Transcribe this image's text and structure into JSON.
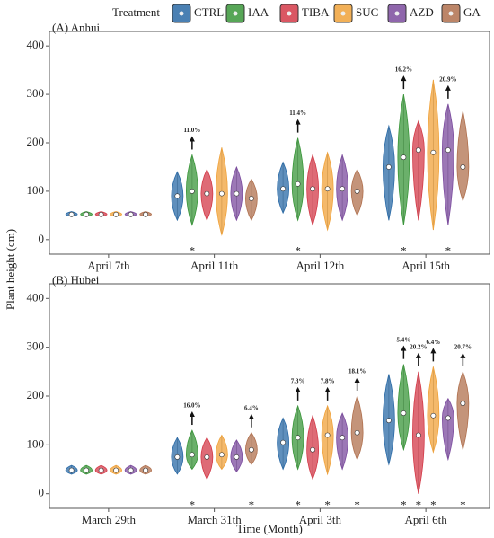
{
  "chart_data": {
    "type": "violin",
    "legend_title": "Treatment",
    "ylabel": "Plant height (cm)",
    "xlabel": "Time (Month)",
    "ylim": [
      -30,
      430
    ],
    "yticks": [
      0,
      100,
      200,
      300,
      400
    ],
    "series": [
      {
        "name": "CTRL",
        "color": "#2a6aa6"
      },
      {
        "name": "IAA",
        "color": "#3a963a"
      },
      {
        "name": "TIBA",
        "color": "#d33a48"
      },
      {
        "name": "SUC",
        "color": "#f0a23a"
      },
      {
        "name": "AZD",
        "color": "#7b4b9e"
      },
      {
        "name": "GA",
        "color": "#b0704e"
      }
    ],
    "panels": [
      {
        "title": "(A) Anhui",
        "categories": [
          "April 7th",
          "April 11th",
          "April 12th",
          "April 15th"
        ],
        "groups": [
          {
            "values": [
              52,
              90,
              105,
              150
            ],
            "low": [
              48,
              40,
              55,
              40
            ],
            "high": [
              58,
              140,
              160,
              235
            ],
            "annotations": [
              null,
              null,
              null,
              null
            ],
            "significance": [
              null,
              null,
              null,
              null
            ]
          },
          {
            "values": [
              52,
              100,
              115,
              170
            ],
            "low": [
              48,
              30,
              40,
              30
            ],
            "high": [
              58,
              175,
              210,
              300
            ],
            "annotations": [
              null,
              "11.0%",
              "11.4%",
              "16.2%"
            ],
            "significance": [
              null,
              "*",
              "*",
              "*"
            ]
          },
          {
            "values": [
              52,
              95,
              105,
              185
            ],
            "low": [
              48,
              40,
              30,
              40
            ],
            "high": [
              58,
              145,
              175,
              245
            ],
            "annotations": [
              null,
              null,
              null,
              null
            ],
            "significance": [
              null,
              null,
              null,
              null
            ]
          },
          {
            "values": [
              52,
              95,
              105,
              180
            ],
            "low": [
              48,
              10,
              20,
              20
            ],
            "high": [
              58,
              190,
              180,
              330
            ],
            "annotations": [
              null,
              null,
              null,
              null
            ],
            "significance": [
              null,
              null,
              null,
              null
            ]
          },
          {
            "values": [
              52,
              95,
              105,
              185
            ],
            "low": [
              48,
              40,
              40,
              30
            ],
            "high": [
              58,
              150,
              175,
              280
            ],
            "annotations": [
              null,
              null,
              null,
              "20.9%"
            ],
            "significance": [
              null,
              null,
              null,
              "*"
            ]
          },
          {
            "values": [
              52,
              85,
              100,
              150
            ],
            "low": [
              48,
              40,
              50,
              80
            ],
            "high": [
              58,
              125,
              145,
              265
            ],
            "annotations": [
              null,
              null,
              null,
              null
            ],
            "significance": [
              null,
              null,
              null,
              null
            ]
          }
        ]
      },
      {
        "title": "(B) Hubei",
        "categories": [
          "March 29th",
          "March 31th",
          "April 3th",
          "April 6th"
        ],
        "groups": [
          {
            "values": [
              48,
              75,
              105,
              150
            ],
            "low": [
              40,
              40,
              50,
              60
            ],
            "high": [
              58,
              115,
              155,
              245
            ],
            "annotations": [
              null,
              null,
              null,
              null
            ],
            "significance": [
              null,
              null,
              null,
              null
            ]
          },
          {
            "values": [
              48,
              80,
              115,
              165
            ],
            "low": [
              40,
              50,
              50,
              90
            ],
            "high": [
              58,
              130,
              180,
              265
            ],
            "annotations": [
              null,
              "16.0%",
              "7.3%",
              "5.4%"
            ],
            "significance": [
              null,
              "*",
              "*",
              "*"
            ]
          },
          {
            "values": [
              48,
              75,
              90,
              120
            ],
            "low": [
              40,
              30,
              30,
              0
            ],
            "high": [
              58,
              115,
              160,
              250
            ],
            "annotations": [
              null,
              null,
              null,
              "20.2%"
            ],
            "significance": [
              null,
              null,
              null,
              "*"
            ]
          },
          {
            "values": [
              48,
              80,
              120,
              160
            ],
            "low": [
              40,
              50,
              40,
              85
            ],
            "high": [
              58,
              120,
              180,
              260
            ],
            "annotations": [
              null,
              null,
              "7.8%",
              "6.4%"
            ],
            "significance": [
              null,
              null,
              "*",
              "*"
            ]
          },
          {
            "values": [
              48,
              75,
              115,
              155
            ],
            "low": [
              40,
              45,
              50,
              70
            ],
            "high": [
              58,
              110,
              165,
              195
            ],
            "annotations": [
              null,
              null,
              null,
              null
            ],
            "significance": [
              null,
              null,
              null,
              null
            ]
          },
          {
            "values": [
              48,
              90,
              125,
              185
            ],
            "low": [
              40,
              60,
              70,
              90
            ],
            "high": [
              58,
              125,
              200,
              250
            ],
            "annotations": [
              null,
              "6.4%",
              "18.1%",
              "20.7%"
            ],
            "significance": [
              null,
              "*",
              "*",
              "*"
            ]
          }
        ]
      }
    ]
  }
}
